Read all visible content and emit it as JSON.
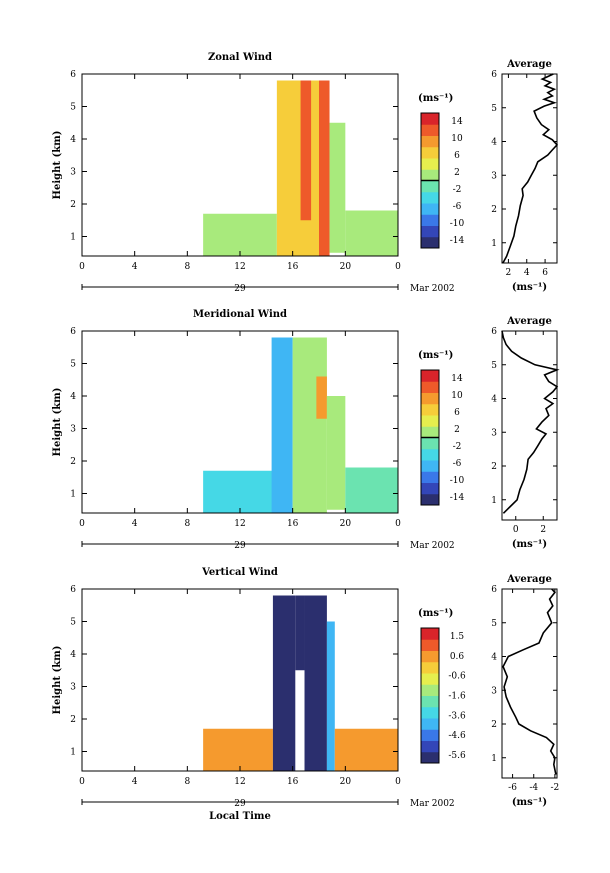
{
  "chart_data": [
    {
      "type": "heatmap",
      "title": "Zonal Wind",
      "ylabel": "Height (km)",
      "xlabel": "",
      "x_ticks": [
        "0",
        "4",
        "8",
        "12",
        "16",
        "20",
        "0"
      ],
      "y_ticks": [
        "1",
        "2",
        "3",
        "4",
        "5",
        "6"
      ],
      "xlim": [
        0,
        24
      ],
      "ylim": [
        0.4,
        6
      ],
      "date_label": "29",
      "date_suffix": "Mar 2002",
      "colorbar": {
        "unit": "(ms⁻¹)",
        "labels": [
          "14",
          "10",
          "6",
          "2",
          "-2",
          "-6",
          "-10",
          "-14"
        ],
        "range": [
          -16,
          16
        ],
        "zero_line": 0
      },
      "regions": [
        {
          "x": [
            9.2,
            14.8
          ],
          "y": [
            0.4,
            1.7
          ],
          "value": 1.5
        },
        {
          "x": [
            14.8,
            18.0
          ],
          "y": [
            0.4,
            5.8
          ],
          "value": 6
        },
        {
          "x": [
            18.0,
            18.8
          ],
          "y": [
            0.4,
            5.8
          ],
          "value": 12
        },
        {
          "x": [
            18.8,
            20.0
          ],
          "y": [
            0.5,
            4.5
          ],
          "value": 2
        },
        {
          "x": [
            20.0,
            24.0
          ],
          "y": [
            0.4,
            1.8
          ],
          "value": 0
        },
        {
          "x": [
            16.6,
            17.4
          ],
          "y": [
            1.5,
            5.8
          ],
          "value": 13
        }
      ]
    },
    {
      "type": "heatmap",
      "title": "Meridional Wind",
      "ylabel": "Height (km)",
      "xlabel": "",
      "x_ticks": [
        "0",
        "4",
        "8",
        "12",
        "16",
        "20",
        "0"
      ],
      "y_ticks": [
        "1",
        "2",
        "3",
        "4",
        "5",
        "6"
      ],
      "xlim": [
        0,
        24
      ],
      "ylim": [
        0.4,
        6
      ],
      "date_label": "29",
      "date_suffix": "Mar 2002",
      "colorbar": {
        "unit": "(ms⁻¹)",
        "labels": [
          "14",
          "10",
          "6",
          "2",
          "-2",
          "-6",
          "-10",
          "-14"
        ],
        "range": [
          -16,
          16
        ],
        "zero_line": 0
      },
      "regions": [
        {
          "x": [
            9.2,
            14.8
          ],
          "y": [
            0.4,
            1.7
          ],
          "value": -3
        },
        {
          "x": [
            14.4,
            16.0
          ],
          "y": [
            0.4,
            5.8
          ],
          "value": -6
        },
        {
          "x": [
            16.0,
            18.6
          ],
          "y": [
            0.4,
            5.8
          ],
          "value": 2
        },
        {
          "x": [
            17.8,
            18.6
          ],
          "y": [
            3.3,
            4.6
          ],
          "value": 10
        },
        {
          "x": [
            18.6,
            20.0
          ],
          "y": [
            0.5,
            4.0
          ],
          "value": 0
        },
        {
          "x": [
            20.0,
            24.0
          ],
          "y": [
            0.4,
            1.8
          ],
          "value": -1
        }
      ]
    },
    {
      "type": "heatmap",
      "title": "Vertical Wind",
      "ylabel": "Height (km)",
      "xlabel": "Local Time",
      "x_ticks": [
        "0",
        "4",
        "8",
        "12",
        "16",
        "20",
        "0"
      ],
      "y_ticks": [
        "1",
        "2",
        "3",
        "4",
        "5",
        "6"
      ],
      "xlim": [
        0,
        24
      ],
      "ylim": [
        0.4,
        6
      ],
      "date_label": "29",
      "date_suffix": "Mar 2002",
      "colorbar": {
        "unit": "(ms⁻¹)",
        "labels": [
          "1.5",
          "0.6",
          "-0.6",
          "-1.6",
          "-3.6",
          "-4.6",
          "-5.6"
        ],
        "range": [
          -6,
          2
        ],
        "zero_line": null
      },
      "regions": [
        {
          "x": [
            9.2,
            14.5
          ],
          "y": [
            0.4,
            1.7
          ],
          "value": 0.3
        },
        {
          "x": [
            14.5,
            16.2
          ],
          "y": [
            0.4,
            5.8
          ],
          "value": -6
        },
        {
          "x": [
            16.2,
            16.9
          ],
          "y": [
            3.5,
            5.8
          ],
          "value": -6
        },
        {
          "x": [
            16.9,
            18.6
          ],
          "y": [
            0.4,
            5.8
          ],
          "value": -6
        },
        {
          "x": [
            18.6,
            19.2
          ],
          "y": [
            0.4,
            5.0
          ],
          "value": -3.5
        },
        {
          "x": [
            19.2,
            24.0
          ],
          "y": [
            0.4,
            1.7
          ],
          "value": 0.3
        }
      ]
    },
    {
      "type": "line",
      "title": "Average",
      "xlabel": "(ms⁻¹)",
      "x_ticks": [
        "2",
        "4",
        "6"
      ],
      "y_ticks": [
        "1",
        "2",
        "3",
        "4",
        "5",
        "6"
      ],
      "xlim": [
        1.3,
        7.3
      ],
      "ylim": [
        0.4,
        6
      ],
      "points": [
        [
          1.4,
          0.4
        ],
        [
          1.8,
          0.6
        ],
        [
          2.2,
          0.9
        ],
        [
          2.6,
          1.2
        ],
        [
          2.8,
          1.5
        ],
        [
          3.1,
          1.8
        ],
        [
          3.3,
          2.1
        ],
        [
          3.6,
          2.4
        ],
        [
          3.5,
          2.6
        ],
        [
          4.1,
          2.8
        ],
        [
          4.5,
          3.0
        ],
        [
          4.9,
          3.2
        ],
        [
          5.2,
          3.4
        ],
        [
          6.3,
          3.6
        ],
        [
          6.8,
          3.75
        ],
        [
          7.3,
          3.9
        ],
        [
          6.8,
          4.05
        ],
        [
          5.8,
          4.2
        ],
        [
          6.4,
          4.35
        ],
        [
          5.6,
          4.5
        ],
        [
          5.1,
          4.7
        ],
        [
          4.8,
          4.9
        ],
        [
          5.9,
          5.05
        ],
        [
          7.0,
          5.15
        ],
        [
          5.9,
          5.25
        ],
        [
          6.8,
          5.35
        ],
        [
          6.3,
          5.45
        ],
        [
          7.0,
          5.55
        ],
        [
          6.0,
          5.65
        ],
        [
          6.6,
          5.75
        ],
        [
          5.7,
          5.85
        ],
        [
          6.9,
          6.0
        ]
      ]
    },
    {
      "type": "line",
      "title": "Average",
      "xlabel": "(ms⁻¹)",
      "x_ticks": [
        "0",
        "2"
      ],
      "y_ticks": [
        "1",
        "2",
        "3",
        "4",
        "5",
        "6"
      ],
      "xlim": [
        -1.0,
        3.0
      ],
      "ylim": [
        0.4,
        6
      ],
      "points": [
        [
          -0.9,
          0.6
        ],
        [
          -0.4,
          0.8
        ],
        [
          0.1,
          1.0
        ],
        [
          0.3,
          1.3
        ],
        [
          0.6,
          1.6
        ],
        [
          0.8,
          1.9
        ],
        [
          0.9,
          2.2
        ],
        [
          1.3,
          2.4
        ],
        [
          1.6,
          2.6
        ],
        [
          1.9,
          2.8
        ],
        [
          2.2,
          2.95
        ],
        [
          1.5,
          3.1
        ],
        [
          1.9,
          3.3
        ],
        [
          2.4,
          3.5
        ],
        [
          2.2,
          3.7
        ],
        [
          2.7,
          3.85
        ],
        [
          2.1,
          4.0
        ],
        [
          2.7,
          4.2
        ],
        [
          3.0,
          4.35
        ],
        [
          2.4,
          4.5
        ],
        [
          2.1,
          4.7
        ],
        [
          3.0,
          4.85
        ],
        [
          1.4,
          5.0
        ],
        [
          0.4,
          5.2
        ],
        [
          -0.3,
          5.4
        ],
        [
          -0.7,
          5.6
        ],
        [
          -0.9,
          5.8
        ],
        [
          -1.0,
          6.0
        ]
      ]
    },
    {
      "type": "line",
      "title": "Average",
      "xlabel": "(ms⁻¹)",
      "x_ticks": [
        "-6",
        "-4",
        "-2"
      ],
      "y_ticks": [
        "1",
        "2",
        "3",
        "4",
        "5",
        "6"
      ],
      "xlim": [
        -7.0,
        -1.8
      ],
      "ylim": [
        0.4,
        6
      ],
      "points": [
        [
          -1.9,
          0.5
        ],
        [
          -2.1,
          0.8
        ],
        [
          -2.0,
          1.0
        ],
        [
          -2.4,
          1.2
        ],
        [
          -2.1,
          1.4
        ],
        [
          -2.8,
          1.6
        ],
        [
          -4.3,
          1.8
        ],
        [
          -5.4,
          2.0
        ],
        [
          -5.7,
          2.2
        ],
        [
          -6.2,
          2.5
        ],
        [
          -6.6,
          2.8
        ],
        [
          -6.8,
          3.1
        ],
        [
          -6.5,
          3.4
        ],
        [
          -6.9,
          3.7
        ],
        [
          -6.4,
          4.0
        ],
        [
          -5.0,
          4.2
        ],
        [
          -3.5,
          4.4
        ],
        [
          -3.1,
          4.7
        ],
        [
          -2.3,
          5.0
        ],
        [
          -2.7,
          5.3
        ],
        [
          -2.2,
          5.5
        ],
        [
          -2.5,
          5.7
        ],
        [
          -2.0,
          5.9
        ],
        [
          -2.3,
          6.0
        ]
      ]
    }
  ]
}
